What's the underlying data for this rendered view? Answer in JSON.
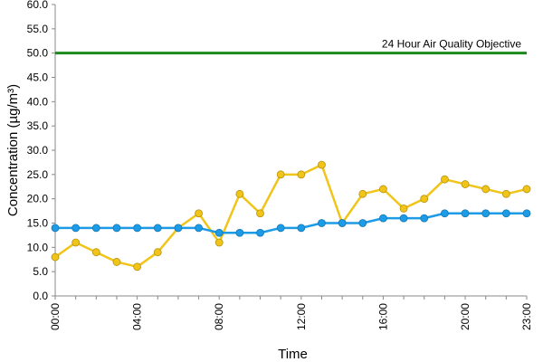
{
  "chart_data": {
    "type": "line",
    "xlabel": "Time",
    "ylabel": "Concentration (µg/m³)",
    "ylim": [
      0,
      60
    ],
    "yticks": [
      "0.0",
      "5.0",
      "10.0",
      "15.0",
      "20.0",
      "25.0",
      "30.0",
      "35.0",
      "40.0",
      "45.0",
      "50.0",
      "55.0",
      "60.0"
    ],
    "x": [
      0,
      1,
      2,
      3,
      4,
      5,
      6,
      7,
      8,
      9,
      10,
      11,
      12,
      13,
      14,
      15,
      16,
      17,
      18,
      19,
      20,
      21,
      22,
      23
    ],
    "xticks": [
      {
        "hour": 0,
        "label": "00:00"
      },
      {
        "hour": 4,
        "label": "04:00"
      },
      {
        "hour": 8,
        "label": "08:00"
      },
      {
        "hour": 12,
        "label": "12:00"
      },
      {
        "hour": 16,
        "label": "16:00"
      },
      {
        "hour": 20,
        "label": "20:00"
      },
      {
        "hour": 23,
        "label": "23:00"
      }
    ],
    "grid": false,
    "series": [
      {
        "color": "#f0c419",
        "values": [
          8,
          11,
          9,
          7,
          6,
          9,
          14,
          17,
          11,
          21,
          17,
          25,
          25,
          27,
          15,
          21,
          22,
          18,
          20,
          24,
          23,
          22,
          21,
          22
        ]
      },
      {
        "color": "#1e9be6",
        "values": [
          14,
          14,
          14,
          14,
          14,
          14,
          14,
          14,
          13,
          13,
          13,
          14,
          14,
          15,
          15,
          15,
          16,
          16,
          16,
          17,
          17,
          17,
          17,
          17
        ]
      }
    ],
    "reference_line": {
      "label": "24 Hour Air Quality Objective",
      "value": 50,
      "color": "#1a8a1a"
    }
  }
}
